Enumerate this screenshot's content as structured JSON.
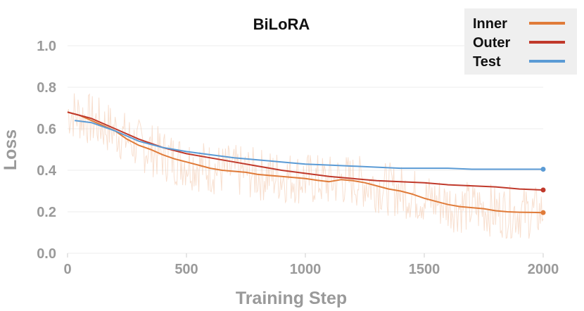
{
  "chart_data": {
    "type": "line",
    "title": "BiLoRA",
    "xlabel": "Training Step",
    "ylabel": "Loss",
    "xlim": [
      0,
      2000
    ],
    "ylim": [
      0,
      1.0
    ],
    "x_ticks": [
      0,
      500,
      1000,
      1500,
      2000
    ],
    "y_ticks": [
      "0.0",
      "0.2",
      "0.4",
      "0.6",
      "0.8",
      "1.0"
    ],
    "grid": true,
    "legend_position": "top-right",
    "series": [
      {
        "name": "Inner",
        "color": "#e07b39",
        "x": [
          0,
          50,
          100,
          150,
          200,
          250,
          300,
          350,
          400,
          450,
          500,
          550,
          600,
          650,
          700,
          750,
          800,
          850,
          900,
          950,
          1000,
          1050,
          1100,
          1150,
          1200,
          1250,
          1300,
          1350,
          1400,
          1450,
          1500,
          1550,
          1600,
          1650,
          1700,
          1750,
          1800,
          1850,
          1900,
          1950,
          2000
        ],
        "values": [
          0.68,
          0.665,
          0.64,
          0.615,
          0.59,
          0.55,
          0.52,
          0.5,
          0.475,
          0.455,
          0.44,
          0.425,
          0.41,
          0.4,
          0.395,
          0.39,
          0.38,
          0.375,
          0.37,
          0.365,
          0.36,
          0.352,
          0.345,
          0.355,
          0.35,
          0.34,
          0.325,
          0.31,
          0.3,
          0.285,
          0.265,
          0.25,
          0.235,
          0.225,
          0.22,
          0.215,
          0.205,
          0.2,
          0.198,
          0.197,
          0.196
        ]
      },
      {
        "name": "Outer",
        "color": "#c0392b",
        "x": [
          0,
          100,
          200,
          300,
          400,
          500,
          600,
          700,
          800,
          900,
          1000,
          1100,
          1200,
          1300,
          1400,
          1500,
          1600,
          1700,
          1800,
          1900,
          2000
        ],
        "values": [
          0.68,
          0.65,
          0.6,
          0.55,
          0.51,
          0.48,
          0.46,
          0.44,
          0.42,
          0.4,
          0.385,
          0.37,
          0.36,
          0.35,
          0.345,
          0.34,
          0.33,
          0.325,
          0.32,
          0.31,
          0.305
        ]
      },
      {
        "name": "Test",
        "color": "#5b9bd5",
        "x": [
          30,
          100,
          200,
          300,
          400,
          500,
          600,
          700,
          800,
          900,
          1000,
          1100,
          1200,
          1300,
          1400,
          1500,
          1600,
          1700,
          1800,
          1900,
          2000
        ],
        "values": [
          0.64,
          0.63,
          0.59,
          0.54,
          0.51,
          0.49,
          0.475,
          0.46,
          0.45,
          0.44,
          0.43,
          0.425,
          0.42,
          0.415,
          0.41,
          0.41,
          0.41,
          0.405,
          0.405,
          0.405,
          0.405
        ]
      }
    ]
  }
}
